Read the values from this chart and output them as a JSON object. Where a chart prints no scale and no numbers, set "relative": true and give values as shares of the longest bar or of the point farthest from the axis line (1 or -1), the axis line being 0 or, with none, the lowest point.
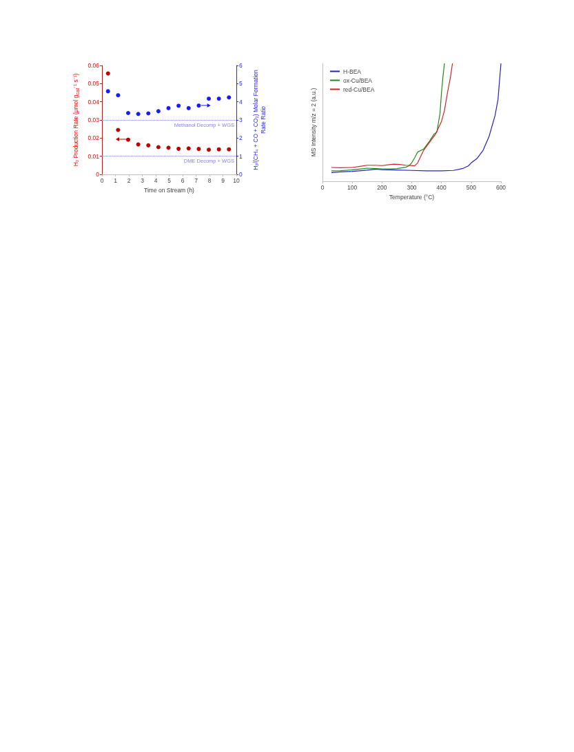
{
  "chart_data": [
    {
      "type": "scatter",
      "xlabel": "Time on Stream (h)",
      "ylabel": "H₂ Production Rate (μmol g$_{cat}$⁻¹ s⁻¹)",
      "y2label": "H₂/(CH₄ + CO + CO₂) Molar Formation Rate Ratio",
      "x": [
        0.45,
        1.2,
        1.95,
        2.7,
        3.45,
        4.2,
        4.95,
        5.7,
        6.45,
        7.2,
        7.95,
        8.7,
        9.45
      ],
      "series": [
        {
          "color": "#c00000",
          "values": [
            0.0556,
            0.0245,
            0.0191,
            0.0165,
            0.016,
            0.015,
            0.0147,
            0.0141,
            0.0143,
            0.014,
            0.0136,
            0.0138,
            0.0138
          ]
        },
        {
          "color": "#1a1aff",
          "axis": "y2",
          "values": [
            4.58,
            4.36,
            3.38,
            3.33,
            3.36,
            3.48,
            3.65,
            3.78,
            3.65,
            3.79,
            4.17,
            4.17,
            4.24
          ]
        }
      ],
      "xlim": [
        0,
        10
      ],
      "xticks": [
        0,
        1,
        2,
        3,
        4,
        5,
        6,
        7,
        8,
        9,
        10
      ],
      "ylim": [
        0,
        0.06
      ],
      "yticks": [
        0,
        0.01,
        0.02,
        0.03,
        0.04,
        0.05,
        0.06
      ],
      "y2lim": [
        0,
        6
      ],
      "y2ticks": [
        0,
        1,
        2,
        3,
        4,
        5,
        6
      ],
      "ref_lines": [
        {
          "axis": "y2",
          "value": 3,
          "label": "Methanol Decomp + WGS",
          "color": "#8080ff",
          "line_style": "dotted"
        },
        {
          "axis": "y2",
          "value": 1,
          "label": "DME Decomp + WGS",
          "color": "#8080ff",
          "line_style": "dotted"
        }
      ],
      "marker": "circle",
      "grid": false,
      "legend": false
    },
    {
      "type": "line",
      "relative": true,
      "xlabel": "Temperature (°C)",
      "ylabel": "MS Intensity m/z = 2 (a.u.)",
      "xlim": [
        0,
        600
      ],
      "xticks": [
        0,
        100,
        200,
        300,
        400,
        500,
        600
      ],
      "series": [
        {
          "name": "H-BEA",
          "color": "#1f1fcc",
          "x": [
            30,
            60,
            100,
            130,
            150,
            180,
            200,
            250,
            300,
            350,
            400,
            440,
            470,
            490,
            500,
            520,
            540,
            560,
            580,
            590,
            595,
            600
          ],
          "values": [
            0.074,
            0.08,
            0.084,
            0.09,
            0.094,
            0.103,
            0.099,
            0.096,
            0.092,
            0.088,
            0.088,
            0.092,
            0.107,
            0.13,
            0.156,
            0.195,
            0.263,
            0.38,
            0.556,
            0.692,
            0.848,
            1
          ]
        },
        {
          "name": "ox-Cu/BEA",
          "color": "#1a8a1a",
          "x": [
            30,
            60,
            100,
            130,
            150,
            180,
            200,
            230,
            250,
            280,
            290,
            300,
            310,
            320,
            340,
            360,
            375,
            385,
            390,
            395,
            400,
            405,
            410
          ],
          "values": [
            0.088,
            0.09,
            0.097,
            0.105,
            0.111,
            0.108,
            0.105,
            0.104,
            0.107,
            0.119,
            0.13,
            0.156,
            0.2,
            0.248,
            0.273,
            0.341,
            0.4,
            0.42,
            0.5,
            0.575,
            0.75,
            0.887,
            1
          ]
        },
        {
          "name": "red-Cu/BEA",
          "color": "#d42020",
          "x": [
            30,
            60,
            100,
            130,
            150,
            180,
            200,
            220,
            240,
            260,
            280,
            300,
            310,
            320,
            330,
            340,
            360,
            380,
            400,
            410,
            420,
            430,
            437
          ],
          "values": [
            0.117,
            0.115,
            0.117,
            0.128,
            0.136,
            0.136,
            0.133,
            0.14,
            0.146,
            0.142,
            0.136,
            0.134,
            0.131,
            0.156,
            0.21,
            0.263,
            0.331,
            0.4,
            0.507,
            0.6,
            0.75,
            0.88,
            1
          ]
        }
      ],
      "marker": "none",
      "line_style": "solid",
      "grid": false,
      "legend": "top left"
    }
  ]
}
